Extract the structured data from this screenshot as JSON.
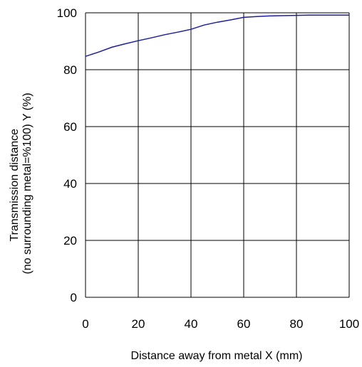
{
  "chart_data": {
    "type": "line",
    "xlabel": "Distance away from metal X (mm)",
    "ylabel_lines": [
      "Transmission distance",
      "(no surrounding metal=%100) Y (%)"
    ],
    "xlim": [
      0,
      100
    ],
    "ylim": [
      0,
      100
    ],
    "x_ticks": [
      0,
      20,
      40,
      60,
      80,
      100
    ],
    "y_ticks": [
      0,
      20,
      40,
      60,
      80,
      100
    ],
    "grid": true,
    "line_color": "#1f1f9e",
    "series": [
      {
        "x": [
          0,
          5,
          10,
          15,
          20,
          25,
          30,
          35,
          40,
          45,
          50,
          55,
          60,
          65,
          70,
          75,
          80,
          85,
          90,
          95,
          100
        ],
        "values": [
          84.7,
          86.2,
          87.9,
          89.1,
          90.2,
          91.2,
          92.3,
          93.2,
          94.2,
          95.7,
          96.7,
          97.5,
          98.4,
          98.7,
          98.9,
          99.0,
          99.1,
          99.2,
          99.2,
          99.2,
          99.2
        ]
      }
    ]
  }
}
